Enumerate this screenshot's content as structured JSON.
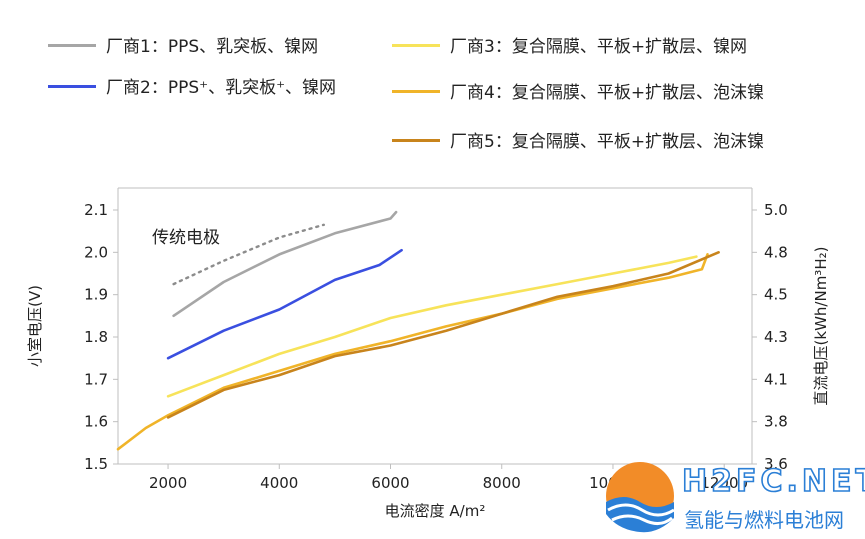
{
  "legend": [
    {
      "label": "厂商1：PPS、乳突板、镍网",
      "color": "#a6a6a6"
    },
    {
      "label": "厂商2：PPS⁺、乳突板⁺、镍网",
      "color": "#3a4fe0"
    },
    {
      "label": "厂商3：复合隔膜、平板+扩散层、镍网",
      "color": "#f7e35a"
    },
    {
      "label": "厂商4：复合隔膜、平板+扩散层、泡沫镍",
      "color": "#f0b429"
    },
    {
      "label": "厂商5：复合隔膜、平板+扩散层、泡沫镍",
      "color": "#c8841c"
    }
  ],
  "watermark": {
    "brand": "H2FC.NET",
    "subtitle": "氢能与燃料电池网"
  },
  "chart_data": {
    "type": "line",
    "xlabel": "电流密度 A/m²",
    "ylabel": "小室电压(V)",
    "y2label": "直流电压(kWh/Nm³H₂)",
    "annotation": "传统电极",
    "xlim": [
      1100,
      12500
    ],
    "ylim": [
      1.5,
      2.1
    ],
    "xticks": [
      2000,
      4000,
      6000,
      8000,
      10000,
      12000
    ],
    "yticks": [
      1.5,
      1.6,
      1.7,
      1.8,
      1.9,
      2.0,
      2.1
    ],
    "y2ticks": [
      {
        "y": 1.5,
        "label": "3.6"
      },
      {
        "y": 1.6,
        "label": "3.8"
      },
      {
        "y": 1.7,
        "label": "4.1"
      },
      {
        "y": 1.8,
        "label": "4.3"
      },
      {
        "y": 1.9,
        "label": "4.5"
      },
      {
        "y": 2.0,
        "label": "4.8"
      },
      {
        "y": 2.1,
        "label": "5.0"
      }
    ],
    "grid": false,
    "series": [
      {
        "name": "厂商1：PPS、乳突板、镍网",
        "color": "#a6a6a6",
        "x": [
          2100,
          3000,
          4000,
          5000,
          6000,
          6100
        ],
        "y": [
          1.85,
          1.93,
          1.995,
          2.045,
          2.08,
          2.095
        ]
      },
      {
        "name": "厂商2：PPS⁺、乳突板⁺、镍网",
        "color": "#3a4fe0",
        "x": [
          2000,
          3000,
          4000,
          5000,
          5800,
          6200
        ],
        "y": [
          1.75,
          1.815,
          1.865,
          1.935,
          1.97,
          2.005
        ]
      },
      {
        "name": "厂商3：复合隔膜、平板+扩散层、镍网",
        "color": "#f7e35a",
        "x": [
          2000,
          3000,
          4000,
          5000,
          6000,
          7000,
          8000,
          9000,
          10000,
          11000,
          11500
        ],
        "y": [
          1.66,
          1.71,
          1.76,
          1.8,
          1.845,
          1.875,
          1.9,
          1.925,
          1.95,
          1.975,
          1.99
        ]
      },
      {
        "name": "厂商4：复合隔膜、平板+扩散层、泡沫镍",
        "color": "#f0b429",
        "x": [
          1100,
          1600,
          2000,
          3000,
          4000,
          5000,
          6000,
          7000,
          8000,
          9000,
          10000,
          11000,
          11600,
          11700
        ],
        "y": [
          1.535,
          1.585,
          1.615,
          1.68,
          1.72,
          1.76,
          1.79,
          1.825,
          1.855,
          1.89,
          1.915,
          1.94,
          1.96,
          1.995
        ]
      },
      {
        "name": "厂商5：复合隔膜、平板+扩散层、泡沫镍",
        "color": "#c8841c",
        "x": [
          2000,
          3000,
          4000,
          5000,
          6000,
          7000,
          8000,
          9000,
          10000,
          11000,
          11900
        ],
        "y": [
          1.61,
          1.675,
          1.71,
          1.755,
          1.78,
          1.815,
          1.855,
          1.895,
          1.92,
          1.95,
          2.0
        ]
      },
      {
        "name": "传统电极",
        "color": "#8c8c8c",
        "dashed": true,
        "x": [
          2100,
          3000,
          4000,
          4800
        ],
        "y": [
          1.925,
          1.98,
          2.035,
          2.065
        ]
      }
    ]
  }
}
